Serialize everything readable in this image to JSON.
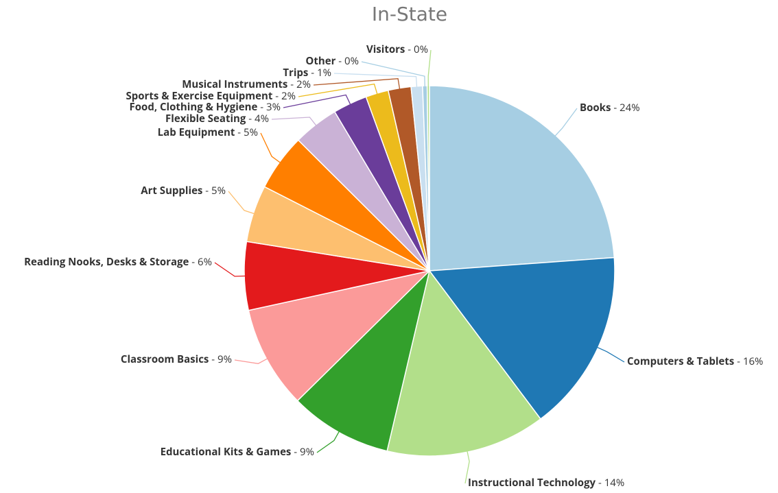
{
  "chart_data": {
    "type": "pie",
    "title": "In-State",
    "categories": [
      "Books",
      "Computers & Tablets",
      "Instructional Technology",
      "Educational Kits & Games",
      "Classroom Basics",
      "Reading Nooks, Desks & Storage",
      "Art Supplies",
      "Lab Equipment",
      "Flexible Seating",
      "Food, Clothing & Hygiene",
      "Sports & Exercise Equipment",
      "Musical Instruments",
      "Trips",
      "Other",
      "Visitors"
    ],
    "values": [
      24,
      16,
      14,
      9,
      9,
      6,
      5,
      5,
      4,
      3,
      2,
      2,
      1,
      0.4,
      0.2
    ],
    "value_labels": [
      "- 24%",
      "- 16%",
      "- 14%",
      "- 9%",
      "- 9%",
      "- 6%",
      "- 5%",
      "- 5%",
      "- 4%",
      "- 3%",
      "- 2%",
      "- 2%",
      "- 1%",
      "- 0%",
      "- 0%"
    ],
    "colors": [
      "#a6cee3",
      "#1f78b4",
      "#b2df8a",
      "#33a02c",
      "#fb9a99",
      "#e31a1c",
      "#fdbf6f",
      "#ff7f00",
      "#cab2d6",
      "#6a3d9a",
      "#ecbb1c",
      "#b15928",
      "#c9dff0",
      "#a6cee3",
      "#b2df8a"
    ]
  }
}
